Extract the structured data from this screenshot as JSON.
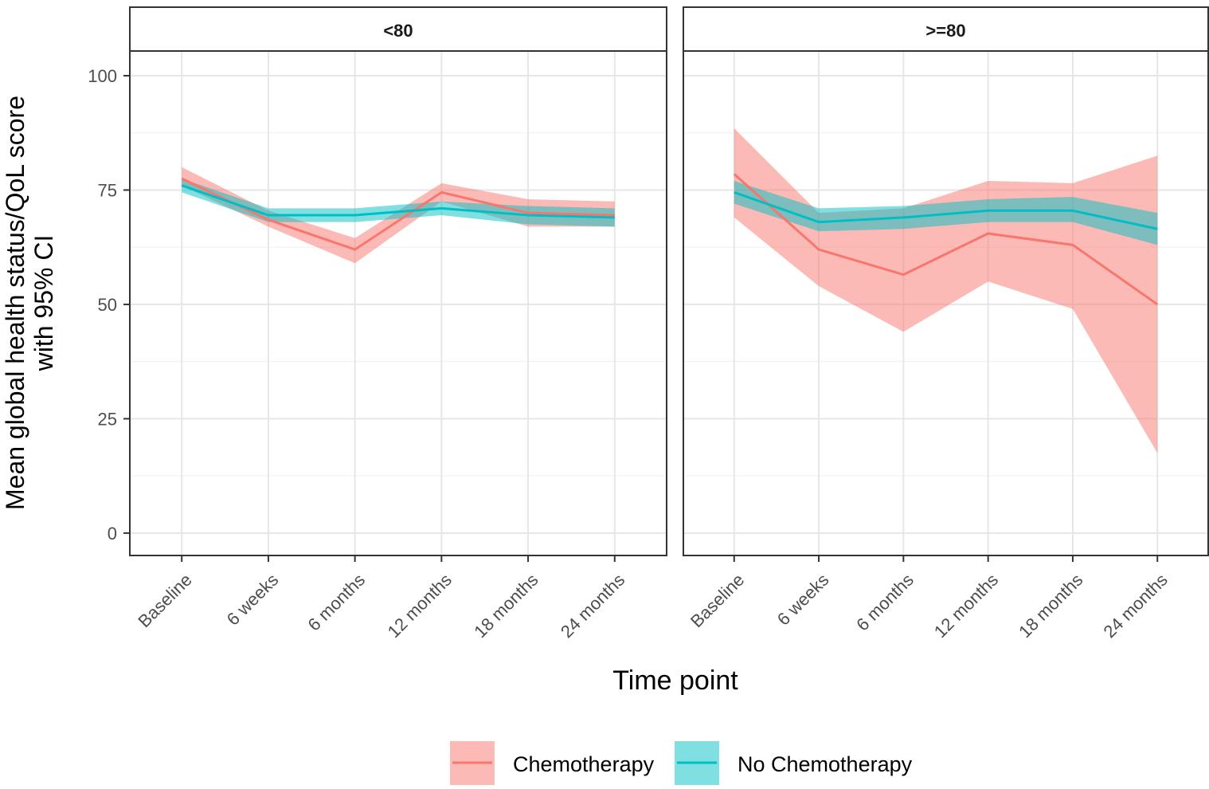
{
  "axis_titles": {
    "y": [
      "Mean global health status/QoL score",
      "with 95% CI"
    ],
    "x": "Time point"
  },
  "legend": [
    {
      "name": "Chemotherapy",
      "color": "#F8766D"
    },
    {
      "name": "No Chemotherapy",
      "color": "#00BFC4"
    }
  ],
  "chart_data": [
    {
      "type": "line",
      "title": "<80",
      "categories": [
        "Baseline",
        "6 weeks",
        "6 months",
        "12 months",
        "18 months",
        "24 months"
      ],
      "ylim": [
        -4.9,
        105.4
      ],
      "yticks": [
        0,
        25,
        50,
        75,
        100
      ],
      "grid": true,
      "series": [
        {
          "values": [
            77.5,
            68.5,
            62,
            74.5,
            70,
            69.5
          ],
          "lower": [
            76,
            67,
            59,
            72.5,
            67,
            67
          ],
          "upper": [
            80,
            70.5,
            64.5,
            76.5,
            73,
            72.5
          ]
        },
        {
          "values": [
            76,
            69.5,
            69.5,
            71,
            69.5,
            69
          ],
          "lower": [
            74.5,
            68,
            68,
            69.5,
            67.5,
            67
          ],
          "upper": [
            77.5,
            71,
            71,
            72.5,
            71.5,
            71
          ]
        }
      ]
    },
    {
      "type": "line",
      "title": ">=80",
      "categories": [
        "Baseline",
        "6 weeks",
        "6 months",
        "12 months",
        "18 months",
        "24 months"
      ],
      "ylim": [
        -4.9,
        105.4
      ],
      "yticks": [
        0,
        25,
        50,
        75,
        100
      ],
      "grid": true,
      "series": [
        {
          "values": [
            78.5,
            62,
            56.5,
            65.5,
            63,
            50
          ],
          "lower": [
            69,
            54,
            44,
            55,
            49,
            17.5
          ],
          "upper": [
            88.5,
            70,
            71,
            77,
            76.5,
            82.5
          ]
        },
        {
          "values": [
            74.5,
            68,
            69,
            70.5,
            70.5,
            66.5
          ],
          "lower": [
            72,
            66,
            66.5,
            68,
            68,
            63
          ],
          "upper": [
            77,
            71,
            71.5,
            73,
            73.5,
            70
          ]
        }
      ]
    }
  ]
}
